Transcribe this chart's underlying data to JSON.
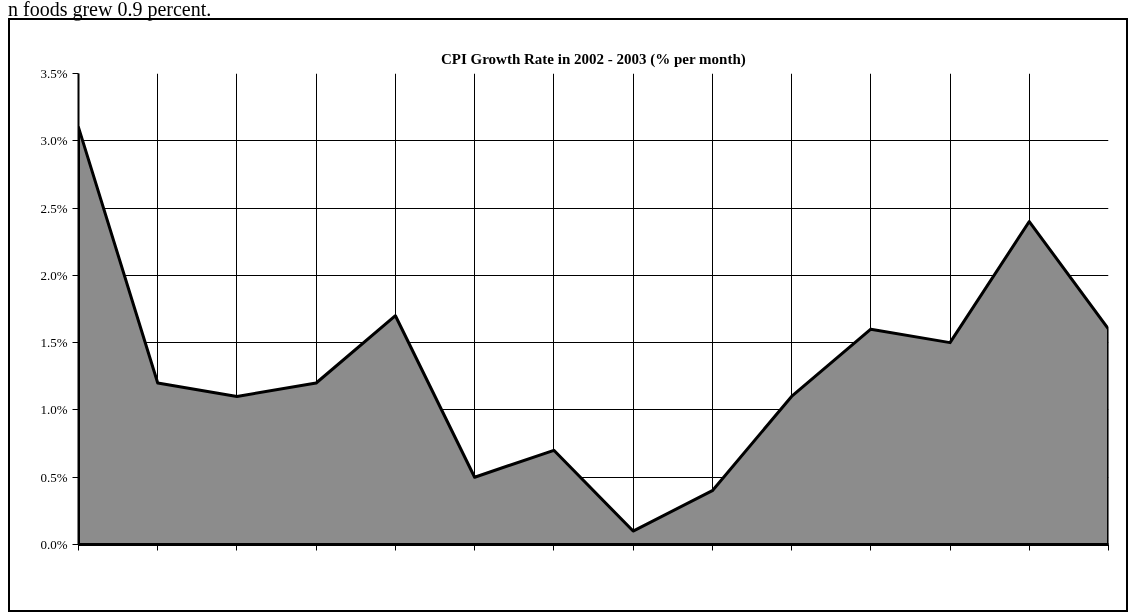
{
  "chart_data": {
    "type": "area",
    "title": "CPI Growth Rate in 2002 - 2003 (% per month)",
    "annotations": [
      "n foods grew 0.9 percent."
    ],
    "categories": [
      null,
      null,
      null,
      null,
      null,
      null,
      null,
      null,
      null,
      null,
      null,
      null,
      null,
      null
    ],
    "values": [
      3.1,
      1.2,
      1.1,
      1.2,
      1.7,
      0.5,
      0.7,
      0.1,
      0.4,
      1.1,
      1.6,
      1.5,
      2.4,
      1.6
    ],
    "color": "#8c8c8c",
    "ylim": [
      0,
      3.5
    ],
    "yticks": [
      {
        "value": 0,
        "label": "0.0%"
      },
      {
        "value": 0.5,
        "label": "0.5%"
      },
      {
        "value": 1.0,
        "label": "1.0%"
      },
      {
        "value": 1.5,
        "label": "1.5%"
      },
      {
        "value": 2.0,
        "label": "2.0%"
      },
      {
        "value": 2.5,
        "label": "2.5%"
      },
      {
        "value": 3.0,
        "label": "3.0%"
      },
      {
        "value": 3.5,
        "label": "3.5%"
      }
    ],
    "grid": true,
    "tick_labels": "y"
  }
}
